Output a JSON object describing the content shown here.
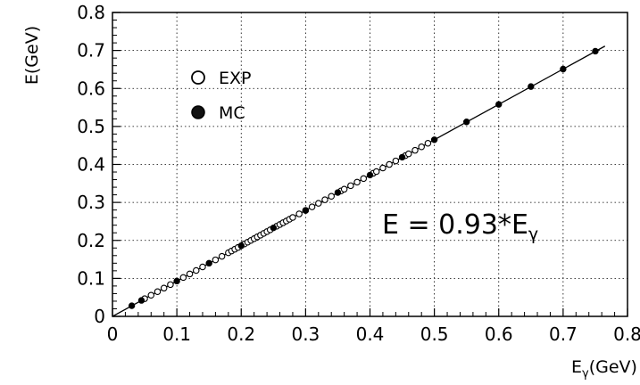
{
  "chart_data": {
    "type": "scatter",
    "xlabel": "Eγ(GeV)",
    "ylabel": "E(GeV)",
    "xlim": [
      0,
      0.8
    ],
    "ylim": [
      0,
      0.8
    ],
    "x_ticks": [
      "0",
      "0.1",
      "0.2",
      "0.3",
      "0.4",
      "0.5",
      "0.6",
      "0.7",
      "0.8"
    ],
    "y_ticks": [
      "0",
      "0.1",
      "0.2",
      "0.3",
      "0.4",
      "0.5",
      "0.6",
      "0.7",
      "0.8"
    ],
    "grid": true,
    "legend": {
      "placement": "top-left",
      "entries": [
        {
          "label": "EXP",
          "marker": "open-circle"
        },
        {
          "label": "MC",
          "marker": "filled-circle"
        }
      ]
    },
    "annotation": "E = 0.93*Eγ",
    "fit_line": {
      "slope": 0.93,
      "intercept": 0,
      "x_range": [
        0,
        0.765
      ]
    },
    "series": [
      {
        "name": "EXP",
        "marker": "open-circle",
        "x": [
          0.05,
          0.06,
          0.07,
          0.08,
          0.09,
          0.11,
          0.12,
          0.13,
          0.14,
          0.16,
          0.17,
          0.18,
          0.185,
          0.19,
          0.195,
          0.205,
          0.21,
          0.215,
          0.22,
          0.225,
          0.23,
          0.235,
          0.24,
          0.245,
          0.255,
          0.26,
          0.265,
          0.27,
          0.275,
          0.28,
          0.29,
          0.3,
          0.31,
          0.32,
          0.33,
          0.34,
          0.355,
          0.36,
          0.37,
          0.38,
          0.39,
          0.405,
          0.41,
          0.42,
          0.43,
          0.44,
          0.455,
          0.46,
          0.47,
          0.48,
          0.49
        ],
        "y": [
          0.0465,
          0.0558,
          0.0651,
          0.0744,
          0.0837,
          0.1023,
          0.1116,
          0.1209,
          0.1302,
          0.1488,
          0.1581,
          0.1674,
          0.1721,
          0.1767,
          0.1814,
          0.1907,
          0.1953,
          0.2,
          0.2046,
          0.2093,
          0.2139,
          0.2186,
          0.2232,
          0.2279,
          0.2372,
          0.2418,
          0.2465,
          0.2511,
          0.2558,
          0.2604,
          0.2697,
          0.279,
          0.2883,
          0.2976,
          0.3069,
          0.3162,
          0.3302,
          0.3348,
          0.3441,
          0.3534,
          0.3627,
          0.3767,
          0.3813,
          0.3906,
          0.3999,
          0.4092,
          0.4232,
          0.4278,
          0.4371,
          0.4464,
          0.4557
        ]
      },
      {
        "name": "MC",
        "marker": "filled-circle",
        "x": [
          0.03,
          0.045,
          0.1,
          0.15,
          0.2,
          0.25,
          0.3,
          0.35,
          0.4,
          0.45,
          0.5,
          0.55,
          0.6,
          0.65,
          0.7,
          0.75
        ],
        "y": [
          0.028,
          0.042,
          0.093,
          0.14,
          0.186,
          0.233,
          0.279,
          0.326,
          0.372,
          0.419,
          0.465,
          0.512,
          0.558,
          0.605,
          0.651,
          0.698
        ]
      }
    ]
  }
}
